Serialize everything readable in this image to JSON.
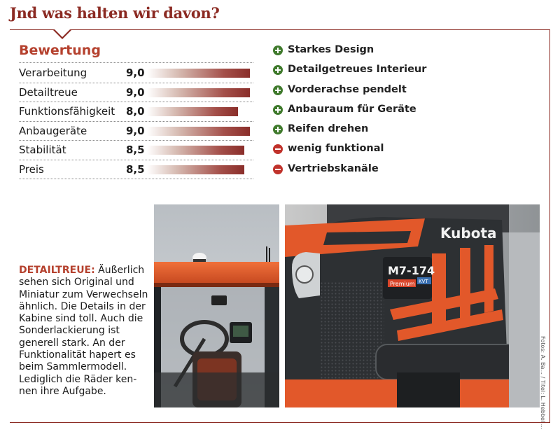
{
  "heading": "Jnd was halten wir davon?",
  "rating": {
    "title": "Bewertung",
    "max_score": 10,
    "rows": [
      {
        "label": "Verarbeitung",
        "score": "9,0",
        "value": 9.0
      },
      {
        "label": "Detailtreue",
        "score": "9,0",
        "value": 9.0
      },
      {
        "label": "Funktionsfähigkeit",
        "score": "8,0",
        "value": 8.0
      },
      {
        "label": "Anbaugeräte",
        "score": "9,0",
        "value": 9.0
      },
      {
        "label": "Stabilität",
        "score": "8,5",
        "value": 8.5
      },
      {
        "label": "Preis",
        "score": "8,5",
        "value": 8.5
      }
    ]
  },
  "pros_cons": [
    {
      "type": "plus",
      "icon": "plus-circle-icon",
      "text": "Starkes Design"
    },
    {
      "type": "plus",
      "icon": "plus-circle-icon",
      "text": "Detailgetreues Interieur"
    },
    {
      "type": "plus",
      "icon": "plus-circle-icon",
      "text": "Vorderachse pendelt"
    },
    {
      "type": "plus",
      "icon": "plus-circle-icon",
      "text": "Anbauraum für Geräte"
    },
    {
      "type": "plus",
      "icon": "plus-circle-icon",
      "text": "Reifen drehen"
    },
    {
      "type": "minus",
      "icon": "minus-circle-icon",
      "text": "wenig funktional"
    },
    {
      "type": "minus",
      "icon": "minus-circle-icon",
      "text": "Vertriebskanäle"
    }
  ],
  "caption": {
    "keyword": "DETAILTREUE:",
    "text": " Äußerlich sehen sich Original und Miniatur zum Verwech­seln ähnlich. Die Details in der Kabine sind toll. Auch die Sonderlackie­rung ist generell stark. An der Funktionalität hapert es beim Sammlermodell. Lediglich die Räder ken­nen ihre Aufgabe."
  },
  "photo2": {
    "brand": "Kubota",
    "model": "M7-174",
    "badge": "Premium",
    "badge2": "KVT"
  },
  "credit": "Fotos: A. Ba... / Titel: L. Hebbel ..."
}
